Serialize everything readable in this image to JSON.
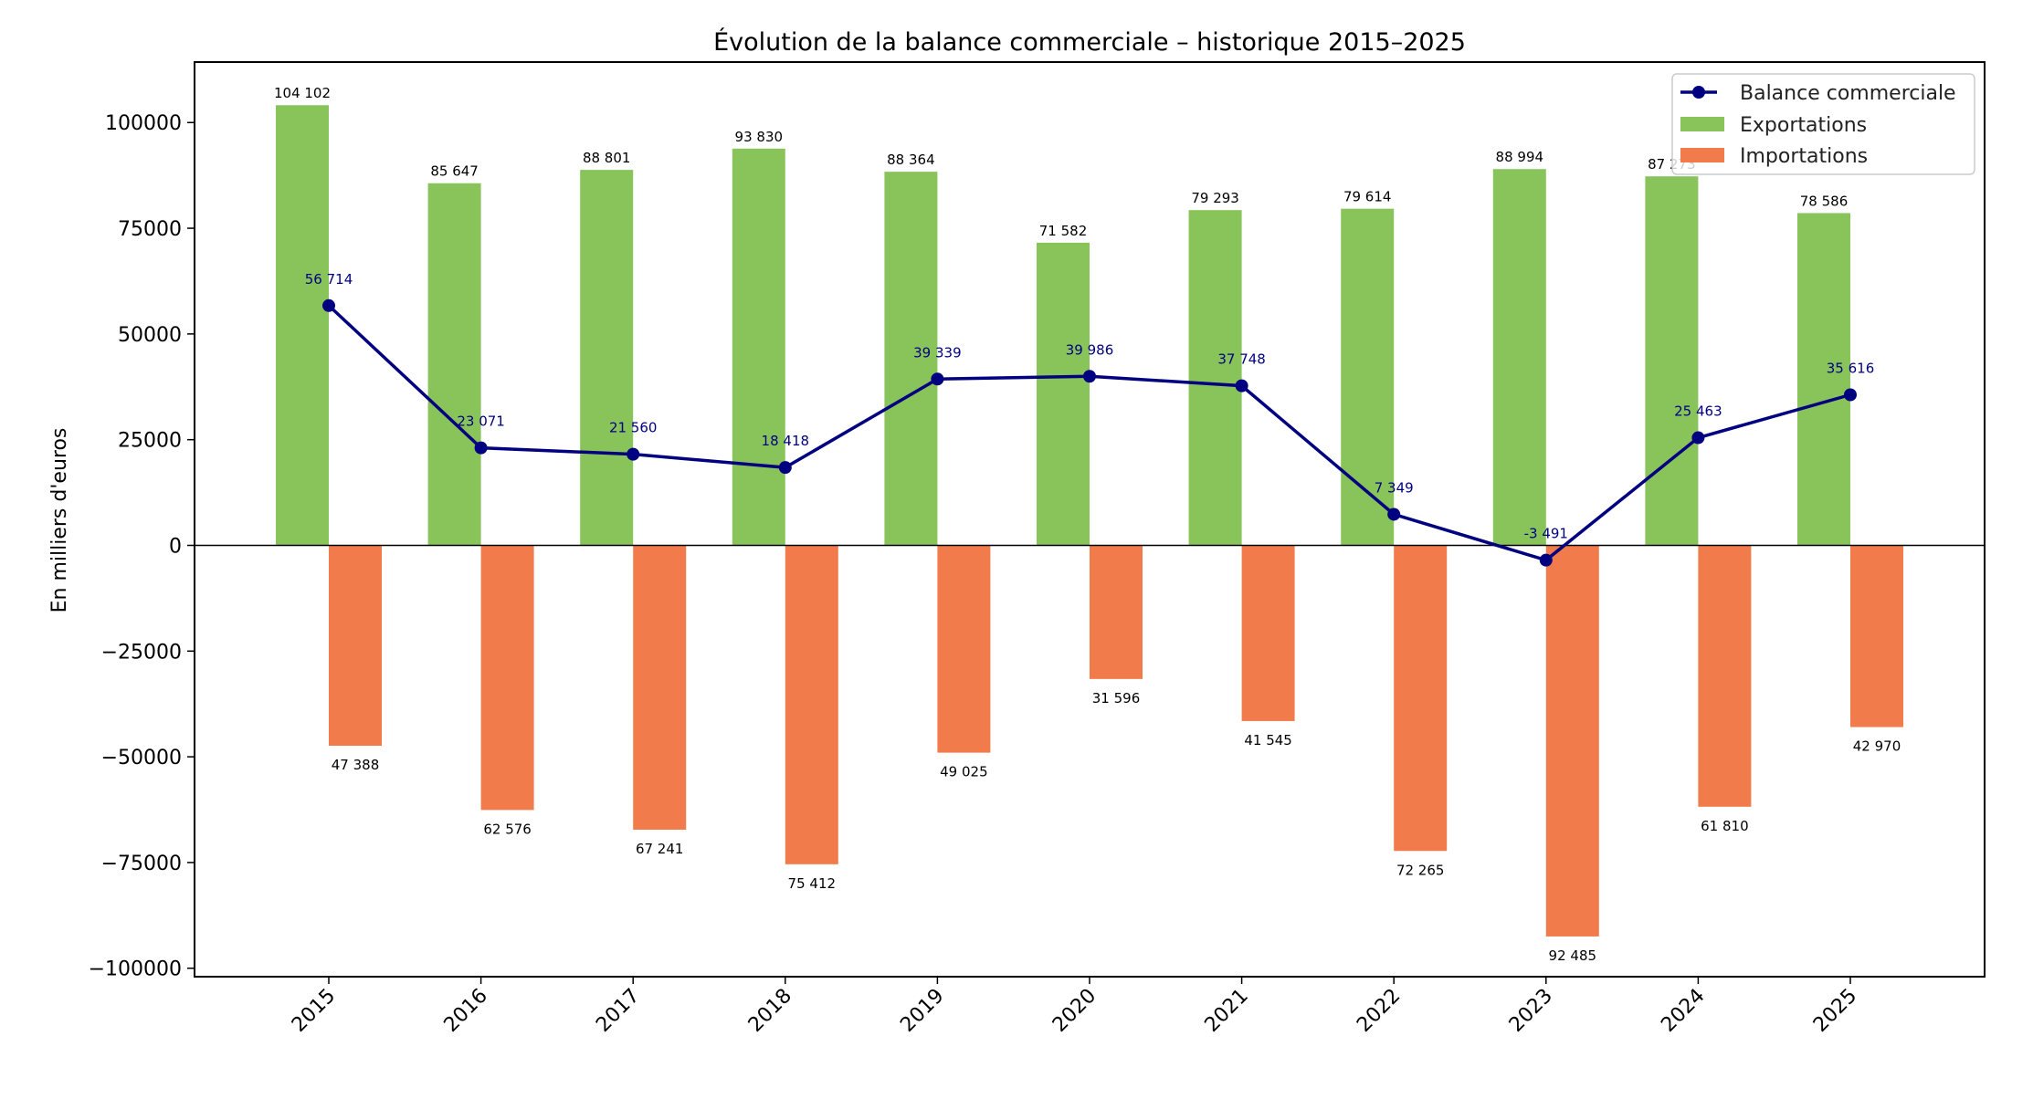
{
  "chart_data": {
    "type": "bar",
    "title": "Évolution de la balance commerciale – historique 2015–2025",
    "xlabel": "",
    "ylabel": "En milliers d'euros",
    "ylim": [
      -102000,
      114300
    ],
    "yticks": [
      -100000,
      -75000,
      -50000,
      -25000,
      0,
      25000,
      50000,
      75000,
      100000
    ],
    "grid": false,
    "legend_position": "top-right",
    "categories": [
      "2015",
      "2016",
      "2017",
      "2018",
      "2019",
      "2020",
      "2021",
      "2022",
      "2023",
      "2024",
      "2025"
    ],
    "series": [
      {
        "name": "Balance commerciale",
        "kind": "line",
        "color": "#000080",
        "values": [
          56714,
          23071,
          21560,
          18418,
          39339,
          39986,
          37748,
          7349,
          -3491,
          25463,
          35616
        ],
        "labels": [
          "56 714",
          "23 071",
          "21 560",
          "18 418",
          "39 339",
          "39 986",
          "37 748",
          "7 349",
          "-3 491",
          "25 463",
          "35 616"
        ]
      },
      {
        "name": "Exportations",
        "kind": "bar",
        "color": "#88c45a",
        "values": [
          104102,
          85647,
          88801,
          93830,
          88364,
          71582,
          79293,
          79614,
          88994,
          87273,
          78586
        ],
        "labels": [
          "104 102",
          "85 647",
          "88 801",
          "93 830",
          "88 364",
          "71 582",
          "79 293",
          "79 614",
          "88 994",
          "87 273",
          "78 586"
        ]
      },
      {
        "name": "Importations",
        "kind": "bar",
        "color": "#f27b4b",
        "values": [
          -47388,
          -62576,
          -67241,
          -75412,
          -49025,
          -31596,
          -41545,
          -72265,
          -92485,
          -61810,
          -42970
        ],
        "labels": [
          "47 388",
          "62 576",
          "67 241",
          "75 412",
          "49 025",
          "31 596",
          "41 545",
          "72 265",
          "92 485",
          "61 810",
          "42 970"
        ]
      }
    ]
  }
}
